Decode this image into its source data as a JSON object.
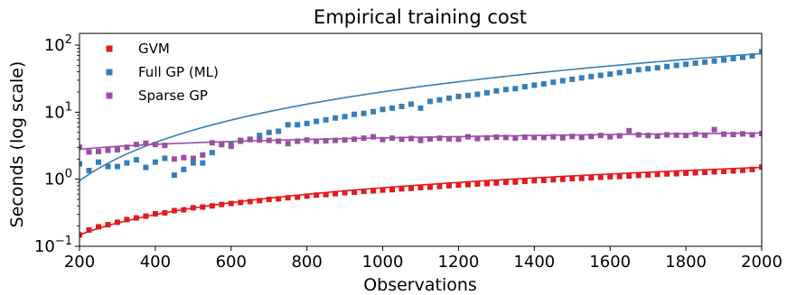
{
  "chart_data": {
    "type": "scatter",
    "title": "Empirical training cost",
    "xlabel": "Observations",
    "ylabel": "Seconds (log scale)",
    "xlim": [
      200,
      2000
    ],
    "ylim": [
      0.1,
      150
    ],
    "yscale": "log",
    "x_ticks": [
      200,
      400,
      600,
      800,
      1000,
      1200,
      1400,
      1600,
      1800,
      2000
    ],
    "y_ticks": [
      {
        "value": 0.1,
        "base": "10",
        "exp": "−1"
      },
      {
        "value": 1,
        "base": "10",
        "exp": "0"
      },
      {
        "value": 10,
        "base": "10",
        "exp": "1"
      },
      {
        "value": 100,
        "base": "10",
        "exp": "2"
      }
    ],
    "grid": false,
    "legend_position": "upper-left",
    "series": [
      {
        "name": "GVM",
        "color": "#e41a1c",
        "trend": {
          "model": "power",
          "x": [
            200,
            2000
          ],
          "y": [
            0.148,
            1.5
          ]
        },
        "x": [
          200,
          225,
          250,
          275,
          300,
          325,
          350,
          375,
          400,
          425,
          450,
          475,
          500,
          525,
          550,
          575,
          600,
          625,
          650,
          675,
          700,
          725,
          750,
          775,
          800,
          825,
          850,
          875,
          900,
          925,
          950,
          975,
          1000,
          1025,
          1050,
          1075,
          1100,
          1125,
          1150,
          1175,
          1200,
          1225,
          1250,
          1275,
          1300,
          1325,
          1350,
          1375,
          1400,
          1425,
          1450,
          1475,
          1500,
          1525,
          1550,
          1575,
          1600,
          1625,
          1650,
          1675,
          1700,
          1725,
          1750,
          1775,
          1800,
          1825,
          1850,
          1875,
          1900,
          1925,
          1950,
          1975,
          2000
        ],
        "y": [
          0.148,
          0.175,
          0.195,
          0.21,
          0.228,
          0.25,
          0.265,
          0.282,
          0.305,
          0.315,
          0.34,
          0.35,
          0.375,
          0.385,
          0.4,
          0.42,
          0.435,
          0.45,
          0.465,
          0.48,
          0.5,
          0.51,
          0.53,
          0.54,
          0.56,
          0.58,
          0.59,
          0.61,
          0.63,
          0.64,
          0.66,
          0.67,
          0.69,
          0.7,
          0.72,
          0.73,
          0.75,
          0.76,
          0.78,
          0.8,
          0.82,
          0.83,
          0.85,
          0.86,
          0.88,
          0.9,
          0.91,
          0.93,
          0.95,
          0.96,
          0.98,
          1.0,
          1.02,
          1.03,
          1.05,
          1.07,
          1.09,
          1.1,
          1.12,
          1.14,
          1.16,
          1.18,
          1.2,
          1.21,
          1.23,
          1.25,
          1.27,
          1.29,
          1.31,
          1.33,
          1.36,
          1.4,
          1.52
        ]
      },
      {
        "name": "Full GP (ML)",
        "color": "#377eb8",
        "trend": {
          "model": "power",
          "x": [
            200,
            2000
          ],
          "y": [
            0.95,
            75
          ]
        },
        "x": [
          200,
          225,
          250,
          275,
          300,
          325,
          350,
          375,
          400,
          425,
          450,
          475,
          500,
          525,
          550,
          575,
          600,
          625,
          650,
          675,
          700,
          725,
          750,
          775,
          800,
          825,
          850,
          875,
          900,
          925,
          950,
          975,
          1000,
          1025,
          1050,
          1075,
          1100,
          1125,
          1150,
          1175,
          1200,
          1225,
          1250,
          1275,
          1300,
          1325,
          1350,
          1375,
          1400,
          1425,
          1450,
          1475,
          1500,
          1525,
          1550,
          1575,
          1600,
          1625,
          1650,
          1675,
          1700,
          1725,
          1750,
          1775,
          1800,
          1825,
          1850,
          1875,
          1900,
          1925,
          1950,
          1975,
          2000
        ],
        "y": [
          1.7,
          1.35,
          1.8,
          1.55,
          1.55,
          1.75,
          1.95,
          1.5,
          1.8,
          2.05,
          1.15,
          1.4,
          1.75,
          1.75,
          2.5,
          3.3,
          3.3,
          3.7,
          3.95,
          4.5,
          5.0,
          5.2,
          6.5,
          6.5,
          6.8,
          7.3,
          7.7,
          8.2,
          8.6,
          9.3,
          9.6,
          10.2,
          11.0,
          11.5,
          12.2,
          13.2,
          11.5,
          14.5,
          15.3,
          16.2,
          17.2,
          17.8,
          18.5,
          19.5,
          20.8,
          21.8,
          22.5,
          24.0,
          25.3,
          26.5,
          28.0,
          29.5,
          31.0,
          32.5,
          34.0,
          35.5,
          37.0,
          39.0,
          41.0,
          43.0,
          44.5,
          46.0,
          48.0,
          50.0,
          52.0,
          54.0,
          56.0,
          58.0,
          60.0,
          63.0,
          66.0,
          69.0,
          80.0
        ]
      },
      {
        "name": "Sparse GP",
        "color": "#984ea3",
        "trend": {
          "model": "power",
          "x": [
            200,
            2000
          ],
          "y": [
            2.8,
            4.9
          ]
        },
        "x": [
          200,
          225,
          250,
          275,
          300,
          325,
          350,
          375,
          400,
          425,
          450,
          475,
          500,
          525,
          550,
          575,
          600,
          625,
          650,
          675,
          700,
          725,
          750,
          775,
          800,
          825,
          850,
          875,
          900,
          925,
          950,
          975,
          1000,
          1025,
          1050,
          1075,
          1100,
          1125,
          1150,
          1175,
          1200,
          1225,
          1250,
          1275,
          1300,
          1325,
          1350,
          1375,
          1400,
          1425,
          1450,
          1475,
          1500,
          1525,
          1550,
          1575,
          1600,
          1625,
          1650,
          1675,
          1700,
          1725,
          1750,
          1775,
          1800,
          1825,
          1850,
          1875,
          1900,
          1925,
          1950,
          1975,
          2000
        ],
        "y": [
          3.0,
          2.55,
          2.6,
          2.7,
          2.75,
          3.0,
          3.3,
          3.45,
          3.3,
          3.2,
          2.0,
          2.1,
          2.05,
          2.3,
          3.5,
          3.3,
          3.1,
          3.8,
          3.9,
          3.85,
          3.8,
          3.7,
          3.4,
          3.7,
          3.85,
          3.7,
          3.75,
          3.8,
          3.85,
          3.95,
          4.1,
          4.3,
          3.9,
          4.1,
          3.95,
          4.05,
          3.8,
          4.0,
          4.1,
          4.0,
          3.95,
          4.3,
          4.05,
          4.15,
          4.25,
          4.2,
          4.1,
          4.25,
          4.2,
          4.2,
          4.3,
          4.15,
          4.35,
          4.2,
          4.35,
          4.5,
          4.3,
          4.45,
          5.3,
          4.6,
          4.5,
          4.4,
          4.6,
          4.55,
          4.5,
          4.7,
          4.55,
          5.5,
          4.7,
          4.65,
          4.75,
          4.6,
          4.8
        ]
      }
    ]
  }
}
